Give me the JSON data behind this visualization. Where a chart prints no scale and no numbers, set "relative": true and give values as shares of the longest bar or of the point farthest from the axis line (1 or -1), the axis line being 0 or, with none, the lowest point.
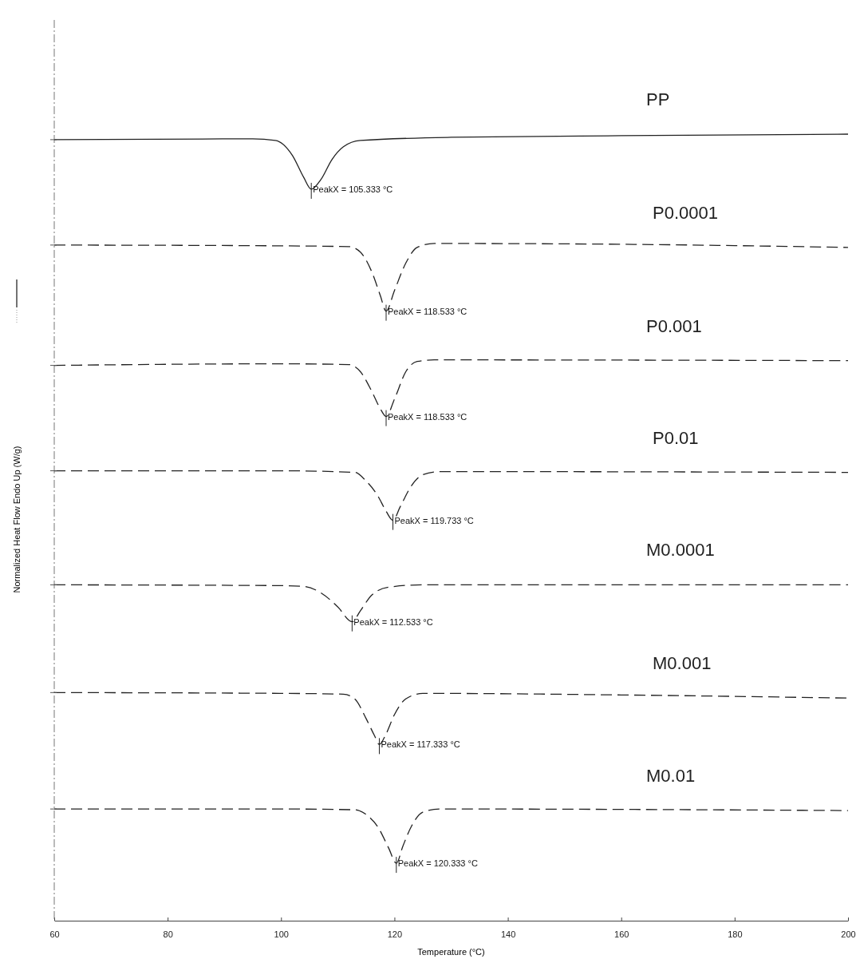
{
  "chart_data": {
    "type": "line",
    "relative": true,
    "xlabel": "Temperature (°C)",
    "ylabel": "Normalized Heat Flow Endo Up (W/g)",
    "xlim": [
      60,
      200
    ],
    "xticks": [
      60,
      80,
      100,
      120,
      140,
      160,
      180,
      200
    ],
    "grid": false,
    "marker": "none",
    "series": [
      {
        "name": "PP",
        "color": "#222222",
        "line_style": "solid",
        "x": [
          60,
          95,
          99,
          102,
          104,
          105.333,
          107,
          109,
          111,
          114,
          130,
          160,
          200
        ],
        "values": [
          0.993,
          0.994,
          0.992,
          0.973,
          0.945,
          0.93,
          0.942,
          0.968,
          0.984,
          0.992,
          0.996,
          0.998,
          1.0
        ]
      },
      {
        "name": "P0.0001",
        "color": "#222222",
        "line_style": "dashed",
        "x": [
          60,
          100,
          112,
          114,
          116,
          117.5,
          118.533,
          120,
          122,
          124,
          127,
          160,
          200
        ],
        "values": [
          0.859,
          0.858,
          0.857,
          0.85,
          0.825,
          0.795,
          0.775,
          0.801,
          0.836,
          0.856,
          0.861,
          0.86,
          0.856
        ]
      },
      {
        "name": "P0.001",
        "color": "#222222",
        "line_style": "dashed",
        "x": [
          60,
          100,
          112,
          114,
          116,
          117.5,
          118.533,
          120,
          122,
          124,
          127,
          200
        ],
        "values": [
          0.706,
          0.708,
          0.707,
          0.698,
          0.673,
          0.651,
          0.641,
          0.663,
          0.698,
          0.711,
          0.713,
          0.712
        ]
      },
      {
        "name": "P0.01",
        "color": "#222222",
        "line_style": "dashed",
        "x": [
          60,
          100,
          113,
          115,
          117,
          118.5,
          119.733,
          121,
          123,
          125,
          128,
          200
        ],
        "values": [
          0.572,
          0.572,
          0.57,
          0.559,
          0.541,
          0.521,
          0.509,
          0.526,
          0.553,
          0.567,
          0.571,
          0.57
        ]
      },
      {
        "name": "M0.0001",
        "color": "#222222",
        "line_style": "dashed",
        "x": [
          60,
          100,
          104,
          107,
          110,
          112.533,
          114,
          116,
          119,
          125,
          200
        ],
        "values": [
          0.427,
          0.426,
          0.425,
          0.417,
          0.399,
          0.38,
          0.394,
          0.414,
          0.424,
          0.427,
          0.427
        ]
      },
      {
        "name": "M0.001",
        "color": "#222222",
        "line_style": "dashed",
        "x": [
          60,
          100,
          111,
          113,
          115,
          116.5,
          117.333,
          118.5,
          120,
          122,
          125,
          160,
          200
        ],
        "values": [
          0.29,
          0.289,
          0.288,
          0.282,
          0.257,
          0.235,
          0.224,
          0.237,
          0.262,
          0.282,
          0.289,
          0.287,
          0.283
        ]
      },
      {
        "name": "M0.01",
        "color": "#222222",
        "line_style": "dashed",
        "x": [
          60,
          100,
          113,
          115,
          117,
          119,
          120.333,
          121.5,
          123,
          125,
          128,
          200
        ],
        "values": [
          0.142,
          0.142,
          0.141,
          0.135,
          0.12,
          0.092,
          0.073,
          0.095,
          0.12,
          0.138,
          0.142,
          0.14
        ]
      }
    ],
    "annotations": [
      {
        "text": "PeakX = 105.333 °C",
        "x": 105.333,
        "y": 0.93
      },
      {
        "text": "PeakX = 118.533 °C",
        "x": 118.533,
        "y": 0.775
      },
      {
        "text": "PeakX = 118.533 °C",
        "x": 118.533,
        "y": 0.641
      },
      {
        "text": "PeakX = 119.733 °C",
        "x": 119.733,
        "y": 0.509
      },
      {
        "text": "PeakX = 112.533 °C",
        "x": 112.533,
        "y": 0.38
      },
      {
        "text": "PeakX = 117.333 °C",
        "x": 117.333,
        "y": 0.224
      },
      {
        "text": "PeakX = 120.333 °C",
        "x": 120.333,
        "y": 0.073
      }
    ]
  }
}
